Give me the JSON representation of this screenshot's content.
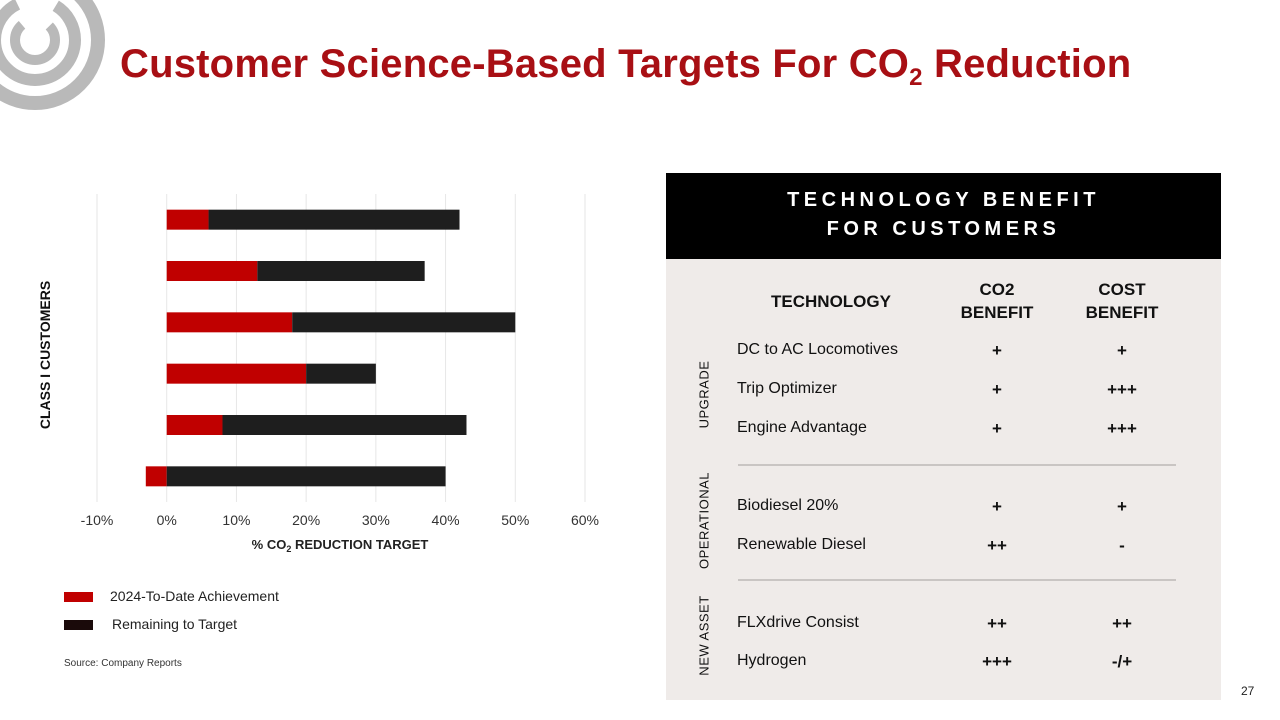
{
  "title": {
    "main": "Customer Science-Based Targets For CO",
    "sub": "2",
    "tail": " Reduction"
  },
  "colors": {
    "brand_red": "#a80f14",
    "achieved": "#c00000",
    "remaining": "#1e1e1e",
    "panel_bg": "#efebe9"
  },
  "chart_data": {
    "type": "bar",
    "orientation": "horizontal",
    "stacked": true,
    "xlabel": "% CO2 REDUCTION TARGET",
    "ylabel": "CLASS I CUSTOMERS",
    "xlim": [
      -10,
      60
    ],
    "xticks": [
      -10,
      0,
      10,
      20,
      30,
      40,
      50,
      60
    ],
    "xtick_labels": [
      "-10%",
      "0%",
      "10%",
      "20%",
      "30%",
      "40%",
      "50%",
      "60%"
    ],
    "grid": true,
    "legend": "bottom-left",
    "series": [
      {
        "name": "2024-To-Date Achievement",
        "values": [
          6,
          13,
          18,
          20,
          8,
          -3
        ]
      },
      {
        "name": "Remaining to Target",
        "values": [
          36,
          24,
          32,
          10,
          35,
          40
        ]
      }
    ]
  },
  "legend": {
    "achieved": "2024-To-Date Achievement",
    "remaining": "Remaining to Target"
  },
  "source": "Source: Company Reports",
  "panel": {
    "heading_line1": "TECHNOLOGY BENEFIT",
    "heading_line2": "FOR CUSTOMERS",
    "col_tech": "TECHNOLOGY",
    "col_co2_1": "CO2",
    "col_co2_2": "BENEFIT",
    "col_cost_1": "COST",
    "col_cost_2": "BENEFIT",
    "groups": [
      {
        "label": "UPGRADE",
        "rows": [
          {
            "tech": "DC to AC Locomotives",
            "co2": "+",
            "cost": "+"
          },
          {
            "tech": "Trip Optimizer",
            "co2": "+",
            "cost": "+++"
          },
          {
            "tech": "Engine Advantage",
            "co2": "+",
            "cost": "+++"
          }
        ]
      },
      {
        "label": "OPERATIONAL",
        "rows": [
          {
            "tech": "Biodiesel 20%",
            "co2": "+",
            "cost": "+"
          },
          {
            "tech": "Renewable Diesel",
            "co2": "++",
            "cost": "-"
          }
        ]
      },
      {
        "label": "NEW ASSET",
        "rows": [
          {
            "tech": "FLXdrive Consist",
            "co2": "++",
            "cost": "++"
          },
          {
            "tech": "Hydrogen",
            "co2": "+++",
            "cost": "-/+"
          }
        ]
      }
    ]
  },
  "page_number": "27"
}
